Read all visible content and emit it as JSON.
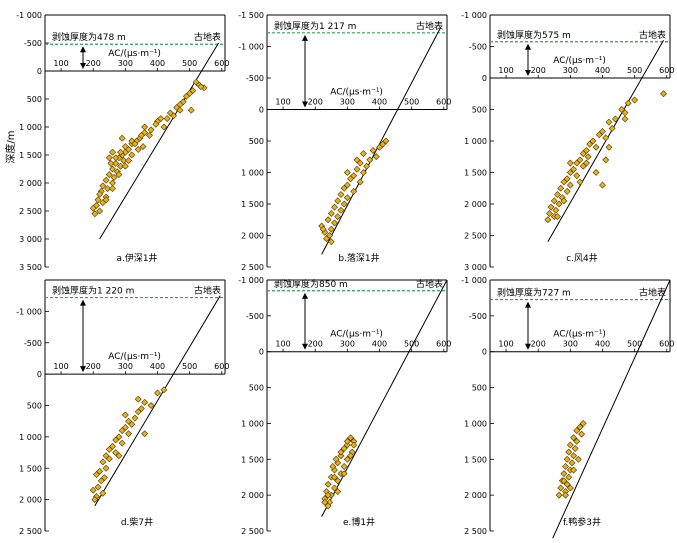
{
  "colors": {
    "point_fill": "#E8B21C",
    "point_stroke": "#4a3200",
    "dash": "#2aa35a",
    "axis": "#000000"
  },
  "common": {
    "xlabel": "AC/(μs·m⁻¹)",
    "ylabel": "深度/m",
    "surface_label": "古地表",
    "x_ticks": [
      100,
      200,
      300,
      400,
      500,
      600
    ],
    "x_range": [
      50,
      610
    ]
  },
  "chart_data": [
    {
      "type": "scatter",
      "caption": "a.伊深1井",
      "erosion_label": "剥蚀厚度为478 m",
      "erosion": 478,
      "ylim": [
        -1000,
        3500
      ],
      "y_ticks": [
        -1000,
        -500,
        0,
        500,
        1000,
        1500,
        2000,
        2500,
        3000,
        3500
      ],
      "y_tick_labels": [
        "-1 000",
        "-500",
        "0",
        "500",
        "1 000",
        "1 500",
        "2 000",
        "2 500",
        "3 000",
        "3 500"
      ],
      "trend": [
        [
          590,
          -500
        ],
        [
          220,
          3000
        ]
      ],
      "points": [
        [
          520,
          200
        ],
        [
          530,
          250
        ],
        [
          545,
          300
        ],
        [
          510,
          350
        ],
        [
          500,
          400
        ],
        [
          490,
          450
        ],
        [
          535,
          280
        ],
        [
          480,
          550
        ],
        [
          470,
          600
        ],
        [
          460,
          650
        ],
        [
          505,
          700
        ],
        [
          450,
          800
        ],
        [
          430,
          850
        ],
        [
          400,
          900
        ],
        [
          395,
          950
        ],
        [
          420,
          1000
        ],
        [
          380,
          1050
        ],
        [
          360,
          1100
        ],
        [
          375,
          1150
        ],
        [
          345,
          1200
        ],
        [
          335,
          1250
        ],
        [
          320,
          1300
        ],
        [
          355,
          1350
        ],
        [
          310,
          1400
        ],
        [
          300,
          1450
        ],
        [
          290,
          1500
        ],
        [
          280,
          1550
        ],
        [
          295,
          1600
        ],
        [
          270,
          1650
        ],
        [
          285,
          1700
        ],
        [
          260,
          1750
        ],
        [
          275,
          1800
        ],
        [
          250,
          1850
        ],
        [
          265,
          1900
        ],
        [
          240,
          1950
        ],
        [
          260,
          2000
        ],
        [
          230,
          2050
        ],
        [
          245,
          2100
        ],
        [
          225,
          2150
        ],
        [
          220,
          2200
        ],
        [
          240,
          2250
        ],
        [
          215,
          2300
        ],
        [
          230,
          2350
        ],
        [
          210,
          2400
        ],
        [
          200,
          2450
        ],
        [
          220,
          2500
        ],
        [
          205,
          2550
        ],
        [
          350,
          1150
        ],
        [
          320,
          1250
        ],
        [
          300,
          1350
        ],
        [
          285,
          1450
        ],
        [
          270,
          1550
        ],
        [
          255,
          1650
        ],
        [
          290,
          1200
        ],
        [
          260,
          1450
        ],
        [
          250,
          1550
        ],
        [
          340,
          1400
        ],
        [
          310,
          1600
        ],
        [
          280,
          1850
        ],
        [
          300,
          1700
        ],
        [
          330,
          1300
        ],
        [
          360,
          1000
        ],
        [
          410,
          850
        ],
        [
          440,
          750
        ],
        [
          470,
          700
        ],
        [
          320,
          1500
        ],
        [
          260,
          2100
        ],
        [
          240,
          2300
        ]
      ]
    },
    {
      "type": "scatter",
      "caption": "b.落深1井",
      "erosion_label": "剥蚀厚度为1 217 m",
      "erosion": 1217,
      "ylim": [
        -1500,
        2500
      ],
      "y_ticks": [
        -1500,
        -1000,
        -500,
        0,
        500,
        1000,
        1500,
        2000,
        2500
      ],
      "y_tick_labels": [
        "-1 500",
        "-1 000",
        "-500",
        "0",
        "500",
        "1 000",
        "1 500",
        "2 000",
        "2 500"
      ],
      "trend": [
        [
          590,
          -1300
        ],
        [
          220,
          2300
        ]
      ],
      "points": [
        [
          410,
          550
        ],
        [
          400,
          600
        ],
        [
          380,
          650
        ],
        [
          350,
          700
        ],
        [
          420,
          500
        ],
        [
          390,
          750
        ],
        [
          370,
          800
        ],
        [
          340,
          850
        ],
        [
          360,
          900
        ],
        [
          330,
          950
        ],
        [
          350,
          1000
        ],
        [
          320,
          1050
        ],
        [
          310,
          1100
        ],
        [
          340,
          1150
        ],
        [
          300,
          1200
        ],
        [
          290,
          1250
        ],
        [
          320,
          1300
        ],
        [
          280,
          1350
        ],
        [
          300,
          1400
        ],
        [
          270,
          1450
        ],
        [
          290,
          1500
        ],
        [
          260,
          1550
        ],
        [
          280,
          1600
        ],
        [
          250,
          1650
        ],
        [
          270,
          1700
        ],
        [
          240,
          1750
        ],
        [
          260,
          1800
        ],
        [
          220,
          1850
        ],
        [
          250,
          1900
        ],
        [
          230,
          1950
        ],
        [
          245,
          2000
        ],
        [
          235,
          2050
        ],
        [
          250,
          2100
        ],
        [
          225,
          1900
        ],
        [
          330,
          800
        ],
        [
          300,
          1000
        ]
      ]
    },
    {
      "type": "scatter",
      "caption": "c.风4井",
      "erosion_label": "剥蚀厚度为575 m",
      "erosion": 575,
      "ylim": [
        -1000,
        3000
      ],
      "y_ticks": [
        -1000,
        -500,
        0,
        500,
        1000,
        1500,
        2000,
        2500,
        3000
      ],
      "y_tick_labels": [
        "-1 000",
        "-500",
        "0",
        "500",
        "1 000",
        "1 500",
        "2 000",
        "2 500",
        "3 000"
      ],
      "trend": [
        [
          590,
          -600
        ],
        [
          230,
          2600
        ]
      ],
      "points": [
        [
          590,
          250
        ],
        [
          500,
          350
        ],
        [
          480,
          400
        ],
        [
          460,
          500
        ],
        [
          470,
          550
        ],
        [
          440,
          650
        ],
        [
          420,
          700
        ],
        [
          430,
          800
        ],
        [
          400,
          850
        ],
        [
          390,
          900
        ],
        [
          410,
          950
        ],
        [
          370,
          1000
        ],
        [
          360,
          1050
        ],
        [
          380,
          1100
        ],
        [
          350,
          1150
        ],
        [
          340,
          1200
        ],
        [
          355,
          1250
        ],
        [
          330,
          1300
        ],
        [
          320,
          1350
        ],
        [
          340,
          1400
        ],
        [
          310,
          1450
        ],
        [
          300,
          1500
        ],
        [
          320,
          1550
        ],
        [
          290,
          1600
        ],
        [
          280,
          1650
        ],
        [
          300,
          1700
        ],
        [
          270,
          1750
        ],
        [
          290,
          1800
        ],
        [
          260,
          1850
        ],
        [
          275,
          1900
        ],
        [
          250,
          1950
        ],
        [
          265,
          2000
        ],
        [
          240,
          2050
        ],
        [
          255,
          2100
        ],
        [
          235,
          2150
        ],
        [
          250,
          2200
        ],
        [
          230,
          2250
        ],
        [
          380,
          1500
        ],
        [
          400,
          1700
        ],
        [
          350,
          1350
        ],
        [
          410,
          1300
        ],
        [
          300,
          1350
        ],
        [
          330,
          1650
        ],
        [
          280,
          1950
        ],
        [
          260,
          2200
        ],
        [
          470,
          650
        ],
        [
          420,
          1100
        ]
      ]
    },
    {
      "type": "scatter",
      "caption": "d.柴7井",
      "erosion_label": "剥蚀厚度为1 220 m",
      "erosion": 1220,
      "ylim": [
        -1500,
        2500
      ],
      "y_ticks": [
        -1500,
        -1000,
        -500,
        0,
        500,
        1000,
        1500,
        2000,
        2500
      ],
      "y_tick_labels": [
        "",
        "-1 000",
        "-500",
        "0",
        "500",
        "1 000",
        "1 500",
        "2 000",
        "2 500"
      ],
      "trend": [
        [
          595,
          -1250
        ],
        [
          205,
          2100
        ]
      ],
      "points": [
        [
          420,
          250
        ],
        [
          400,
          300
        ],
        [
          360,
          450
        ],
        [
          380,
          500
        ],
        [
          350,
          550
        ],
        [
          340,
          600
        ],
        [
          330,
          700
        ],
        [
          310,
          750
        ],
        [
          320,
          800
        ],
        [
          300,
          850
        ],
        [
          290,
          900
        ],
        [
          310,
          950
        ],
        [
          280,
          1000
        ],
        [
          270,
          1050
        ],
        [
          290,
          1100
        ],
        [
          260,
          1150
        ],
        [
          250,
          1200
        ],
        [
          270,
          1250
        ],
        [
          240,
          1300
        ],
        [
          250,
          1350
        ],
        [
          230,
          1400
        ],
        [
          240,
          1500
        ],
        [
          220,
          1550
        ],
        [
          210,
          1600
        ],
        [
          235,
          1650
        ],
        [
          225,
          1700
        ],
        [
          215,
          1800
        ],
        [
          200,
          1850
        ],
        [
          230,
          1900
        ],
        [
          210,
          1950
        ],
        [
          205,
          2000
        ],
        [
          360,
          950
        ],
        [
          340,
          400
        ],
        [
          300,
          650
        ],
        [
          280,
          1300
        ]
      ]
    },
    {
      "type": "scatter",
      "caption": "e.博1井",
      "erosion_label": "剥蚀厚度为850 m",
      "erosion": 850,
      "ylim": [
        -1000,
        2500
      ],
      "y_ticks": [
        -1000,
        -500,
        0,
        500,
        1000,
        1500,
        2000,
        2500
      ],
      "y_tick_labels": [
        "-1 000",
        "-500",
        "0",
        "500",
        "1 000",
        "1 500",
        "2 000",
        "2 500"
      ],
      "trend": [
        [
          610,
          -1000
        ],
        [
          220,
          2300
        ]
      ],
      "points": [
        [
          310,
          1200
        ],
        [
          320,
          1250
        ],
        [
          300,
          1300
        ],
        [
          290,
          1350
        ],
        [
          315,
          1400
        ],
        [
          280,
          1450
        ],
        [
          300,
          1500
        ],
        [
          270,
          1550
        ],
        [
          290,
          1600
        ],
        [
          260,
          1650
        ],
        [
          280,
          1700
        ],
        [
          250,
          1750
        ],
        [
          270,
          1800
        ],
        [
          240,
          1850
        ],
        [
          260,
          1900
        ],
        [
          235,
          1950
        ],
        [
          250,
          2000
        ],
        [
          230,
          2050
        ],
        [
          245,
          2100
        ],
        [
          240,
          2150
        ],
        [
          320,
          1300
        ],
        [
          300,
          1250
        ],
        [
          280,
          1400
        ],
        [
          265,
          1500
        ],
        [
          255,
          1600
        ],
        [
          270,
          1950
        ],
        [
          310,
          1450
        ],
        [
          290,
          1700
        ],
        [
          260,
          1750
        ],
        [
          240,
          2000
        ],
        [
          230,
          2100
        ]
      ]
    },
    {
      "type": "scatter",
      "caption": "f.鸭参3井",
      "erosion_label": "剥蚀厚度为727 m",
      "erosion": 727,
      "ylim": [
        -1000,
        2500
      ],
      "y_ticks": [
        -1000,
        -500,
        0,
        500,
        1000,
        1500,
        2000,
        2500
      ],
      "y_tick_labels": [
        "-1 000",
        "-500",
        "0",
        "500",
        "1 000",
        "1 500",
        "2 000",
        "2 500"
      ],
      "trend": [
        [
          610,
          -1000
        ],
        [
          245,
          2600
        ]
      ],
      "points": [
        [
          340,
          1000
        ],
        [
          330,
          1050
        ],
        [
          320,
          1100
        ],
        [
          335,
          1150
        ],
        [
          310,
          1200
        ],
        [
          320,
          1250
        ],
        [
          300,
          1300
        ],
        [
          315,
          1350
        ],
        [
          295,
          1400
        ],
        [
          310,
          1450
        ],
        [
          290,
          1500
        ],
        [
          305,
          1550
        ],
        [
          285,
          1600
        ],
        [
          300,
          1650
        ],
        [
          280,
          1700
        ],
        [
          295,
          1750
        ],
        [
          275,
          1800
        ],
        [
          290,
          1850
        ],
        [
          270,
          1900
        ],
        [
          285,
          1950
        ],
        [
          265,
          2000
        ],
        [
          280,
          1800
        ],
        [
          310,
          1650
        ],
        [
          325,
          1500
        ],
        [
          300,
          1900
        ],
        [
          285,
          2000
        ]
      ]
    }
  ]
}
